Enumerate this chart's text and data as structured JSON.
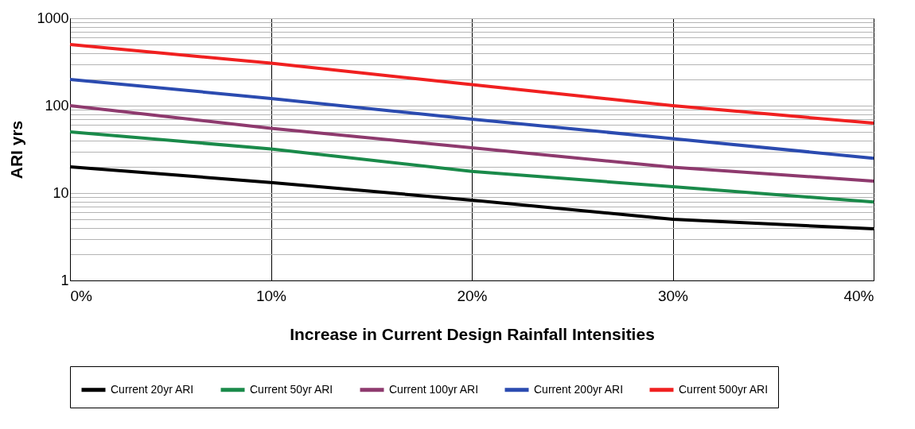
{
  "chart_data": {
    "type": "line",
    "xlabel": "Increase in Current Design Rainfall Intensities",
    "ylabel": "ARI yrs",
    "x": [
      0,
      10,
      20,
      30,
      40
    ],
    "xlim": [
      0,
      40
    ],
    "xticks": [
      {
        "value": 0,
        "label": "0%"
      },
      {
        "value": 10,
        "label": "10%"
      },
      {
        "value": 20,
        "label": "20%"
      },
      {
        "value": 30,
        "label": "30%"
      },
      {
        "value": 40,
        "label": "40%"
      }
    ],
    "ylim": [
      1,
      1000
    ],
    "yticks": [
      1,
      10,
      100,
      1000
    ],
    "log": "y",
    "grid": true,
    "legend": "bottom",
    "marker": "none",
    "line_style": "solid",
    "series": [
      {
        "name": "Current 20yr ARI",
        "color": "#000000",
        "values": [
          20,
          13.2,
          8.3,
          5,
          3.9
        ]
      },
      {
        "name": "Current 50yr ARI",
        "color": "#1a8a4a",
        "values": [
          50,
          32,
          17.7,
          11.8,
          7.9
        ]
      },
      {
        "name": "Current 100yr ARI",
        "color": "#8e3a6e",
        "values": [
          100,
          55,
          33,
          19.7,
          13.7
        ]
      },
      {
        "name": "Current 200yr ARI",
        "color": "#2b4bb0",
        "values": [
          200,
          121,
          70,
          42,
          25
        ]
      },
      {
        "name": "Current 500yr ARI",
        "color": "#f02020",
        "values": [
          500,
          306,
          174,
          100,
          63
        ]
      }
    ]
  }
}
